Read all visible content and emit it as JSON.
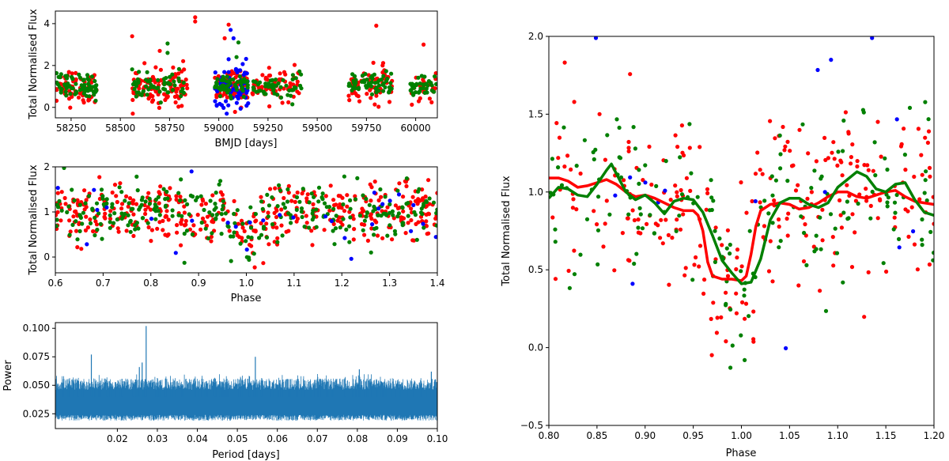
{
  "colors": {
    "red": "#ff0000",
    "green": "#008000",
    "blue": "#0000ff",
    "periodogram": "#1f77b4"
  },
  "chart_data": [
    {
      "id": "lightcurve",
      "type": "scatter",
      "xlabel": "BMJD [days]",
      "ylabel": "Total Normalised Flux",
      "xlim": [
        58170,
        60110
      ],
      "ylim": [
        -0.5,
        4.6
      ],
      "xticks": [
        58250,
        58500,
        58750,
        59000,
        59250,
        59500,
        59750,
        60000
      ],
      "xtick_labels": [
        "58250",
        "58500",
        "58750",
        "59000",
        "59250",
        "59500",
        "59750",
        "60000"
      ],
      "yticks": [
        0,
        2,
        4
      ],
      "ytick_labels": [
        "0",
        "2",
        "4"
      ],
      "seasons": [
        {
          "x": [
            58175,
            58380
          ],
          "n_red": 60,
          "n_green": 70,
          "n_blue": 0
        },
        {
          "x": [
            58560,
            58840
          ],
          "n_red": 110,
          "n_green": 60,
          "n_blue": 0
        },
        {
          "x": [
            58980,
            59150
          ],
          "n_red": 80,
          "n_green": 50,
          "n_blue": 70
        },
        {
          "x": [
            59170,
            59420
          ],
          "n_red": 60,
          "n_green": 50,
          "n_blue": 0
        },
        {
          "x": [
            59660,
            59880
          ],
          "n_red": 70,
          "n_green": 60,
          "n_blue": 0
        },
        {
          "x": [
            59970,
            60105
          ],
          "n_red": 25,
          "n_green": 35,
          "n_blue": 0
        }
      ],
      "outliers": [
        {
          "x": 58880,
          "y": 4.3,
          "c": "red"
        },
        {
          "x": 58880,
          "y": 4.1,
          "c": "red"
        },
        {
          "x": 59050,
          "y": 3.95,
          "c": "red"
        },
        {
          "x": 59800,
          "y": 3.9,
          "c": "red"
        },
        {
          "x": 58560,
          "y": 3.4,
          "c": "red"
        },
        {
          "x": 58740,
          "y": 3.05,
          "c": "green"
        },
        {
          "x": 59030,
          "y": 3.3,
          "c": "red"
        },
        {
          "x": 60040,
          "y": 3.0,
          "c": "red"
        },
        {
          "x": 59060,
          "y": 3.7,
          "c": "blue"
        },
        {
          "x": 59075,
          "y": 3.3,
          "c": "blue"
        },
        {
          "x": 59100,
          "y": 3.1,
          "c": "green"
        },
        {
          "x": 58700,
          "y": 2.7,
          "c": "red"
        },
        {
          "x": 58740,
          "y": 2.6,
          "c": "green"
        },
        {
          "x": 59090,
          "y": 2.4,
          "c": "green"
        },
        {
          "x": 59050,
          "y": 2.3,
          "c": "blue"
        }
      ]
    },
    {
      "id": "phase-folded",
      "type": "scatter",
      "xlabel": "Phase",
      "ylabel": "Total Normalised Flux",
      "xlim": [
        0.6,
        1.4
      ],
      "ylim": [
        -0.35,
        2.0
      ],
      "xticks": [
        0.6,
        0.7,
        0.8,
        0.9,
        1.0,
        1.1,
        1.2,
        1.3,
        1.4
      ],
      "xtick_labels": [
        "0.6",
        "0.7",
        "0.8",
        "0.9",
        "1.0",
        "1.1",
        "1.2",
        "1.3",
        "1.4"
      ],
      "yticks": [
        0,
        1,
        2
      ],
      "ytick_labels": [
        "0",
        "1",
        "2"
      ],
      "n_red": 420,
      "n_green": 300,
      "n_blue": 30,
      "dip_center": 1.0,
      "dip_depth": 0.55,
      "dip_width": 0.025
    },
    {
      "id": "periodogram",
      "type": "line",
      "xlabel": "Period [days]",
      "ylabel": "Power",
      "xlim": [
        0.0045,
        0.1
      ],
      "ylim": [
        0.012,
        0.105
      ],
      "xticks": [
        0.02,
        0.03,
        0.04,
        0.05,
        0.06,
        0.07,
        0.08,
        0.09,
        0.1
      ],
      "xtick_labels": [
        "0.02",
        "0.03",
        "0.04",
        "0.05",
        "0.06",
        "0.07",
        "0.08",
        "0.09",
        "0.10"
      ],
      "yticks": [
        0.025,
        0.05,
        0.075,
        0.1
      ],
      "ytick_labels": [
        "0.025",
        "0.050",
        "0.075",
        "0.100"
      ],
      "floor": 0.019,
      "band_low": 0.026,
      "band_high": 0.05,
      "peaks": [
        {
          "x": 0.0135,
          "y": 0.077
        },
        {
          "x": 0.0272,
          "y": 0.102
        },
        {
          "x": 0.0262,
          "y": 0.07
        },
        {
          "x": 0.0255,
          "y": 0.066
        },
        {
          "x": 0.0545,
          "y": 0.075
        },
        {
          "x": 0.0805,
          "y": 0.064
        },
        {
          "x": 0.0985,
          "y": 0.062
        }
      ]
    },
    {
      "id": "phase-zoom",
      "type": "scatter",
      "xlabel": "Phase",
      "ylabel": "Total Normalised Flux",
      "xlim": [
        0.8,
        1.2
      ],
      "ylim": [
        -0.5,
        2.0
      ],
      "xticks": [
        0.8,
        0.85,
        0.9,
        0.95,
        1.0,
        1.05,
        1.1,
        1.15,
        1.2
      ],
      "xtick_labels": [
        "0.80",
        "0.85",
        "0.90",
        "0.95",
        "1.00",
        "1.05",
        "1.10",
        "1.15",
        "1.20"
      ],
      "yticks": [
        -0.5,
        0.0,
        0.5,
        1.0,
        1.5,
        2.0
      ],
      "ytick_labels": [
        "−0.5",
        "0.0",
        "0.5",
        "1.0",
        "1.5",
        "2.0"
      ],
      "n_red": 250,
      "n_green": 170,
      "n_blue": 16,
      "red_curve": {
        "x": [
          0.8,
          0.81,
          0.82,
          0.83,
          0.84,
          0.85,
          0.86,
          0.87,
          0.88,
          0.89,
          0.9,
          0.91,
          0.92,
          0.93,
          0.94,
          0.95,
          0.955,
          0.96,
          0.965,
          0.97,
          0.98,
          0.99,
          1.0,
          1.005,
          1.01,
          1.015,
          1.02,
          1.03,
          1.04,
          1.05,
          1.06,
          1.07,
          1.08,
          1.09,
          1.1,
          1.11,
          1.12,
          1.13,
          1.14,
          1.15,
          1.16,
          1.17,
          1.18,
          1.19,
          1.2
        ],
        "y": [
          1.09,
          1.09,
          1.07,
          1.03,
          1.04,
          1.06,
          1.08,
          1.05,
          1.0,
          0.97,
          0.98,
          0.96,
          0.93,
          0.9,
          0.88,
          0.88,
          0.85,
          0.75,
          0.55,
          0.46,
          0.44,
          0.44,
          0.43,
          0.46,
          0.6,
          0.78,
          0.88,
          0.92,
          0.93,
          0.92,
          0.89,
          0.9,
          0.93,
          0.97,
          1.0,
          1.0,
          0.97,
          0.96,
          0.98,
          1.0,
          1.01,
          0.97,
          0.94,
          0.93,
          0.92
        ]
      },
      "green_curve": {
        "x": [
          0.8,
          0.81,
          0.82,
          0.83,
          0.84,
          0.85,
          0.86,
          0.865,
          0.87,
          0.88,
          0.89,
          0.9,
          0.91,
          0.92,
          0.93,
          0.94,
          0.95,
          0.96,
          0.97,
          0.98,
          0.99,
          1.0,
          1.01,
          1.02,
          1.03,
          1.04,
          1.05,
          1.06,
          1.07,
          1.08,
          1.09,
          1.1,
          1.11,
          1.12,
          1.13,
          1.14,
          1.15,
          1.16,
          1.17,
          1.18,
          1.19,
          1.2
        ],
        "y": [
          0.96,
          1.03,
          1.02,
          0.98,
          0.97,
          1.05,
          1.14,
          1.18,
          1.12,
          1.0,
          0.95,
          0.98,
          0.93,
          0.86,
          0.94,
          0.96,
          0.95,
          0.87,
          0.72,
          0.56,
          0.48,
          0.41,
          0.42,
          0.57,
          0.82,
          0.93,
          0.96,
          0.96,
          0.92,
          0.9,
          0.93,
          1.03,
          1.08,
          1.13,
          1.1,
          1.02,
          1.0,
          1.05,
          1.06,
          0.95,
          0.87,
          0.85
        ]
      }
    }
  ]
}
